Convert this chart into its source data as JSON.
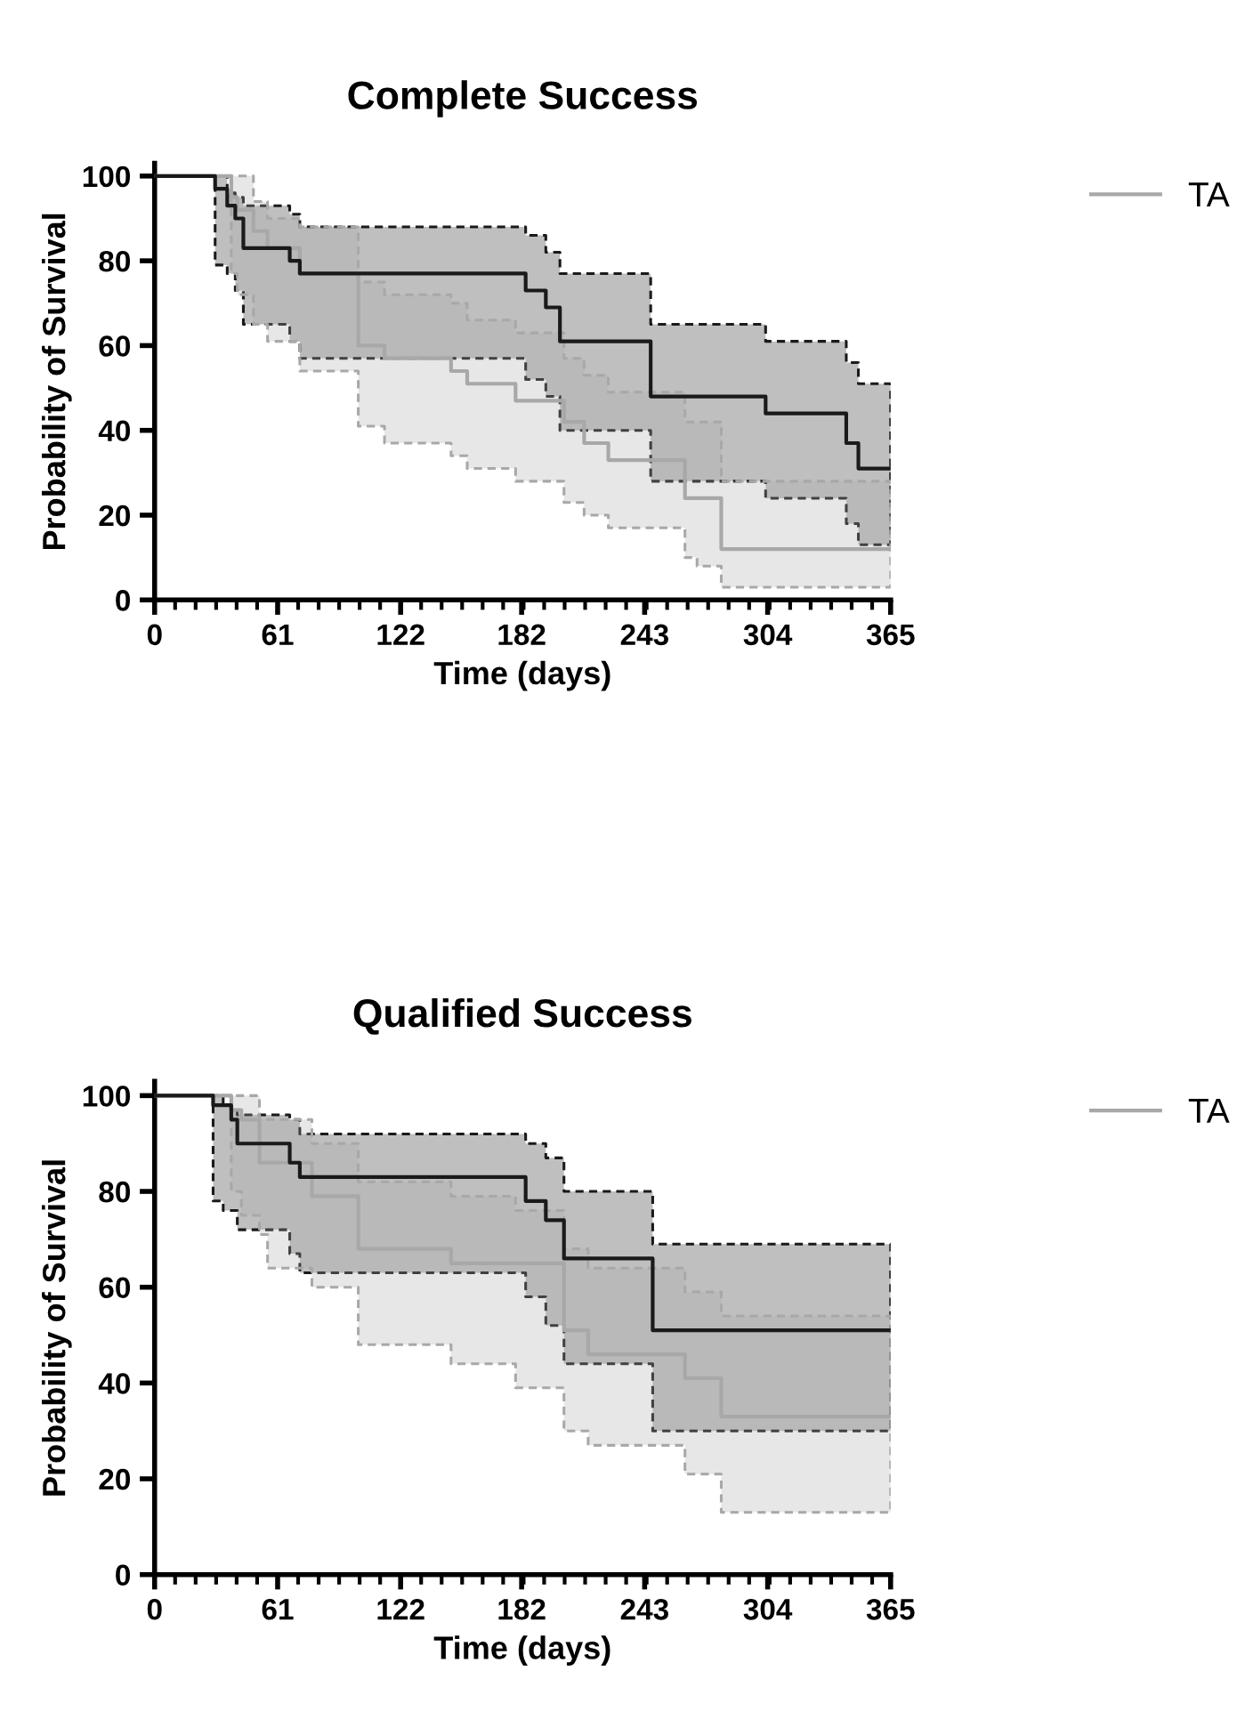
{
  "chart_data": [
    {
      "type": "step",
      "title": "Complete Success",
      "xlabel": "Time (days)",
      "ylabel": "Probability of Survival",
      "xlim": [
        0,
        365
      ],
      "ylim": [
        0,
        103
      ],
      "xticks": [
        0,
        61,
        122,
        182,
        243,
        304,
        365
      ],
      "yticks": [
        0,
        20,
        40,
        60,
        80,
        100
      ],
      "grid": false,
      "legend": "top right",
      "series": [
        {
          "color": "#1a1a1a",
          "x": [
            0,
            30,
            36,
            40,
            44,
            67,
            72,
            184,
            194,
            201,
            246,
            303,
            343,
            349,
            365
          ],
          "values": [
            100,
            97,
            93,
            90,
            83,
            80,
            77,
            73,
            69,
            61,
            48,
            44,
            37,
            31,
            31
          ],
          "upper": [
            100,
            100,
            96,
            95,
            93,
            91,
            88,
            86,
            82,
            77,
            65,
            61,
            56,
            51,
            51
          ],
          "lower": [
            100,
            79,
            77,
            73,
            65,
            61,
            57,
            52,
            48,
            40,
            28,
            24,
            18,
            13,
            13
          ]
        },
        {
          "name": "TA",
          "color": "#a8a8a8",
          "x": [
            0,
            38,
            41,
            49,
            56,
            72,
            101,
            114,
            147,
            155,
            179,
            203,
            213,
            225,
            263,
            269,
            281,
            365
          ],
          "values": [
            100,
            95,
            92,
            87,
            83,
            77,
            60,
            57,
            54,
            51,
            47,
            42,
            37,
            33,
            24,
            24,
            12,
            12
          ],
          "upper": [
            100,
            100,
            100,
            94,
            90,
            88,
            75,
            72,
            70,
            66,
            63,
            57,
            53,
            49,
            42,
            42,
            28,
            28
          ],
          "lower": [
            100,
            77,
            72,
            65,
            61,
            54,
            41,
            37,
            34,
            31,
            28,
            23,
            20,
            17,
            10,
            8,
            3,
            3
          ]
        }
      ]
    },
    {
      "type": "step",
      "title": "Qualified Success",
      "xlabel": "Time (days)",
      "ylabel": "Probability of Survival",
      "xlim": [
        0,
        365
      ],
      "ylim": [
        0,
        103
      ],
      "xticks": [
        0,
        61,
        122,
        182,
        243,
        304,
        365
      ],
      "yticks": [
        0,
        20,
        40,
        60,
        80,
        100
      ],
      "grid": false,
      "legend": "top right",
      "series": [
        {
          "color": "#1a1a1a",
          "x": [
            0,
            29,
            34,
            38,
            41,
            67,
            72,
            184,
            194,
            203,
            247,
            365
          ],
          "values": [
            100,
            98,
            98,
            95,
            90,
            86,
            83,
            78,
            74,
            66,
            51,
            51
          ],
          "upper": [
            100,
            100,
            98,
            97,
            96,
            95,
            92,
            90,
            87,
            80,
            69,
            69
          ],
          "lower": [
            100,
            78,
            76,
            76,
            72,
            67,
            63,
            58,
            52,
            44,
            30,
            30
          ]
        },
        {
          "name": "TA",
          "color": "#a8a8a8",
          "x": [
            0,
            38,
            43,
            52,
            56,
            78,
            101,
            147,
            179,
            203,
            215,
            263,
            281,
            365
          ],
          "values": [
            100,
            97,
            95,
            86,
            86,
            79,
            68,
            65,
            65,
            51,
            46,
            41,
            33,
            33
          ],
          "upper": [
            100,
            100,
            100,
            95,
            95,
            90,
            82,
            79,
            76,
            68,
            64,
            59,
            54,
            54
          ],
          "lower": [
            100,
            80,
            75,
            71,
            64,
            60,
            48,
            44,
            39,
            30,
            27,
            21,
            13,
            13
          ]
        }
      ]
    }
  ]
}
